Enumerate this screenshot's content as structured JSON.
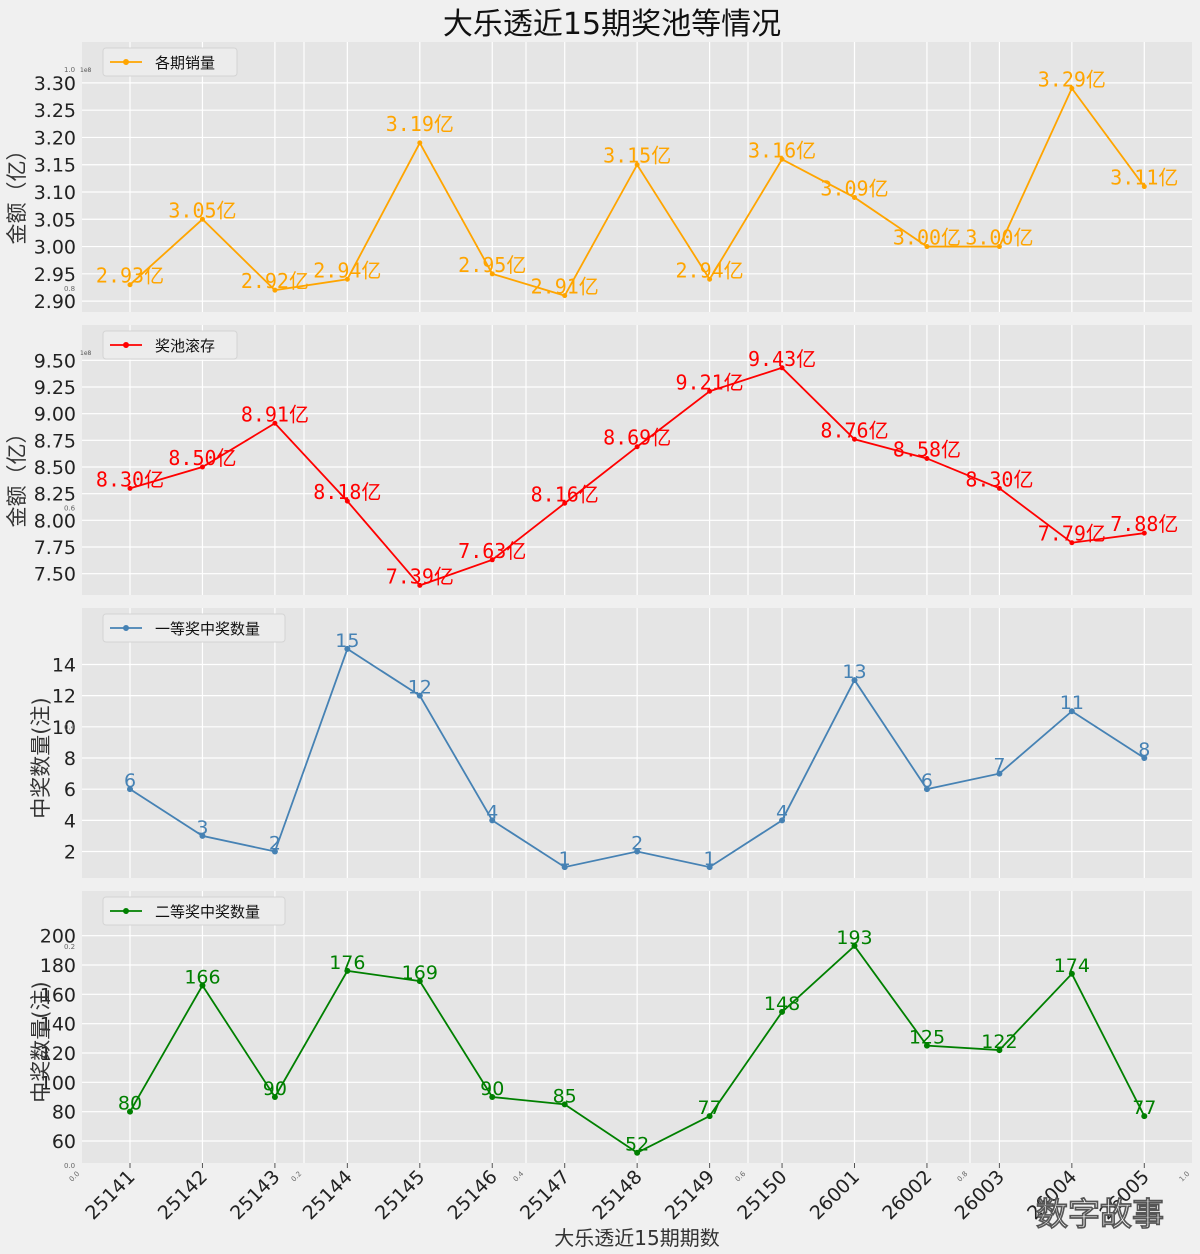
{
  "title": "大乐透近15期奖池等情况",
  "watermark": "数字故事",
  "chart_data": [
    {
      "type": "line",
      "legend": "各期销量",
      "legend_position": "top-left",
      "ylabel": "金额（亿）",
      "offset_text": "1e8",
      "ylim": [
        2.88,
        3.32
      ],
      "yticks": [
        2.9,
        2.95,
        3.0,
        3.05,
        3.1,
        3.15,
        3.2,
        3.25,
        3.3
      ],
      "ytick_labels": [
        "2.90",
        "2.95",
        "3.00",
        "3.05",
        "3.10",
        "3.15",
        "3.20",
        "3.25",
        "3.30"
      ],
      "values": [
        2.93,
        3.05,
        2.92,
        2.94,
        3.19,
        2.95,
        2.91,
        3.15,
        2.94,
        3.16,
        3.09,
        3.0,
        3.0,
        3.29,
        3.11
      ],
      "labels": [
        "2.93亿",
        "3.05亿",
        "2.92亿",
        "2.94亿",
        "3.19亿",
        "2.95亿",
        "2.91亿",
        "3.15亿",
        "2.94亿",
        "3.16亿",
        "3.09亿",
        "3.00亿",
        "3.00亿",
        "3.29亿",
        "3.11亿"
      ],
      "color": "#ffa500"
    },
    {
      "type": "line",
      "legend": "奖池滚存",
      "legend_position": "top-left",
      "ylabel": "金额（亿）",
      "offset_text": "1e8",
      "ylim": [
        7.3,
        9.55
      ],
      "yticks": [
        7.5,
        7.75,
        8.0,
        8.25,
        8.5,
        8.75,
        9.0,
        9.25,
        9.5
      ],
      "ytick_labels": [
        "7.50",
        "7.75",
        "8.00",
        "8.25",
        "8.50",
        "8.75",
        "9.00",
        "9.25",
        "9.50"
      ],
      "values": [
        8.3,
        8.5,
        8.91,
        8.18,
        7.39,
        7.63,
        8.16,
        8.69,
        9.21,
        9.43,
        8.76,
        8.58,
        8.3,
        7.79,
        7.88
      ],
      "labels": [
        "8.30亿",
        "8.50亿",
        "8.91亿",
        "8.18亿",
        "7.39亿",
        "7.63亿",
        "8.16亿",
        "8.69亿",
        "9.21亿",
        "9.43亿",
        "8.76亿",
        "8.58亿",
        "8.30亿",
        "7.79亿",
        "7.88亿"
      ],
      "color": "#ff0000"
    },
    {
      "type": "line",
      "legend": "一等奖中奖数量",
      "legend_position": "top-left",
      "ylabel": "中奖数量(注)",
      "ylim": [
        0.3,
        15.7
      ],
      "yticks": [
        2,
        4,
        6,
        8,
        10,
        12,
        14
      ],
      "ytick_labels": [
        "2",
        "4",
        "6",
        "8",
        "10",
        "12",
        "14"
      ],
      "values": [
        6,
        3,
        2,
        15,
        12,
        4,
        1,
        2,
        1,
        4,
        13,
        6,
        7,
        11,
        8
      ],
      "labels": [
        "6",
        "3",
        "2",
        "15",
        "12",
        "4",
        "1",
        "2",
        "1",
        "4",
        "13",
        "6",
        "7",
        "11",
        "8"
      ],
      "color": "#4682b4"
    },
    {
      "type": "line",
      "legend": "二等奖中奖数量",
      "legend_position": "top-left",
      "ylabel": "中奖数量(注)",
      "ylim": [
        45,
        210
      ],
      "yticks": [
        60,
        80,
        100,
        120,
        140,
        160,
        180,
        200
      ],
      "ytick_labels": [
        "60",
        "80",
        "100",
        "120",
        "140",
        "160",
        "180",
        "200"
      ],
      "values": [
        80,
        166,
        90,
        176,
        169,
        90,
        85,
        52,
        77,
        148,
        193,
        125,
        122,
        174,
        77
      ],
      "labels": [
        "80",
        "166",
        "90",
        "176",
        "169",
        "90",
        "85",
        "52",
        "77",
        "148",
        "193",
        "125",
        "122",
        "174",
        "77"
      ],
      "color": "#008000"
    }
  ],
  "categories": [
    "25141",
    "25142",
    "25143",
    "25144",
    "25145",
    "25146",
    "25147",
    "25148",
    "25149",
    "25150",
    "26001",
    "26002",
    "26003",
    "26004",
    "26005"
  ],
  "xlabel": "大乐透近15期期数",
  "stray_ticks": {
    "values": [
      "0.0",
      "0.2",
      "0.4",
      "0.6",
      "0.8",
      "1.0"
    ],
    "y_values": [
      "0.0",
      "0.2",
      "0.4",
      "0.6",
      "0.8",
      "1.0"
    ]
  }
}
